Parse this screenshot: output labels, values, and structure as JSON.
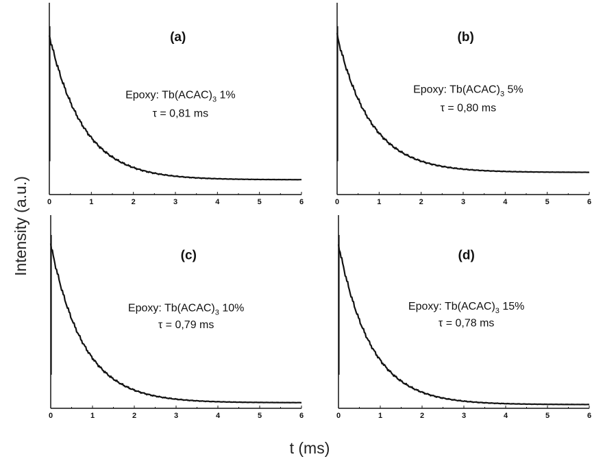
{
  "figure": {
    "ylabel": "Intensity (a.u.)",
    "xlabel": "t (ms)"
  },
  "chart_data": [
    {
      "type": "line",
      "panel_label": "(a)",
      "annotation_prefix": "Epoxy: Tb(ACAC)",
      "annotation_sub": "3",
      "annotation_suffix": " 1%",
      "tau_label": "τ = 0,81 ms",
      "tau_ms": 0.81,
      "xlim": [
        0,
        6
      ],
      "xticks": [
        "0",
        "1",
        "2",
        "3",
        "4",
        "5",
        "6"
      ],
      "ylim": [
        0,
        1
      ],
      "peak": 0.86,
      "baseline": 0.08,
      "x": [
        0,
        0.5,
        1,
        1.5,
        2,
        2.5,
        3,
        4,
        5,
        6
      ],
      "y": [
        0.86,
        0.59,
        0.4,
        0.28,
        0.2,
        0.15,
        0.12,
        0.09,
        0.08,
        0.08
      ]
    },
    {
      "type": "line",
      "panel_label": "(b)",
      "annotation_prefix": "Epoxy: Tb(ACAC)",
      "annotation_sub": "3",
      "annotation_suffix": " 5%",
      "tau_label": "τ = 0,80 ms",
      "tau_ms": 0.8,
      "xlim": [
        0,
        6
      ],
      "xticks": [
        "0",
        "1",
        "2",
        "3",
        "4",
        "5",
        "6"
      ],
      "ylim": [
        0,
        1
      ],
      "peak": 0.86,
      "baseline": 0.12,
      "x": [
        0,
        0.5,
        1,
        1.5,
        2,
        2.5,
        3,
        4,
        5,
        6
      ],
      "y": [
        0.86,
        0.51,
        0.33,
        0.23,
        0.17,
        0.14,
        0.13,
        0.12,
        0.12,
        0.12
      ]
    },
    {
      "type": "line",
      "panel_label": "(c)",
      "annotation_prefix": "Epoxy: Tb(ACAC)",
      "annotation_sub": "3",
      "annotation_suffix": " 10%",
      "tau_label": "τ = 0,79 ms",
      "tau_ms": 0.79,
      "xlim": [
        0,
        6
      ],
      "xticks": [
        "0",
        "1",
        "2",
        "3",
        "4",
        "5",
        "6"
      ],
      "ylim": [
        0,
        1
      ],
      "peak": 0.88,
      "baseline": 0.03,
      "x": [
        0,
        0.5,
        1,
        1.5,
        2,
        2.5,
        3,
        4,
        5,
        6
      ],
      "y": [
        0.88,
        0.56,
        0.34,
        0.21,
        0.13,
        0.08,
        0.06,
        0.04,
        0.03,
        0.03
      ]
    },
    {
      "type": "line",
      "panel_label": "(d)",
      "annotation_prefix": "Epoxy: Tb(ACAC)",
      "annotation_sub": "3",
      "annotation_suffix": " 15%",
      "tau_label": "τ = 0,78 ms",
      "tau_ms": 0.78,
      "xlim": [
        0,
        6
      ],
      "xticks": [
        "0",
        "1",
        "2",
        "3",
        "4",
        "5",
        "6"
      ],
      "ylim": [
        0,
        1
      ],
      "peak": 0.88,
      "baseline": 0.02,
      "x": [
        0,
        0.5,
        1,
        1.5,
        2,
        2.5,
        3,
        4,
        5,
        6
      ],
      "y": [
        0.88,
        0.46,
        0.25,
        0.14,
        0.08,
        0.05,
        0.04,
        0.02,
        0.02,
        0.02
      ]
    }
  ]
}
